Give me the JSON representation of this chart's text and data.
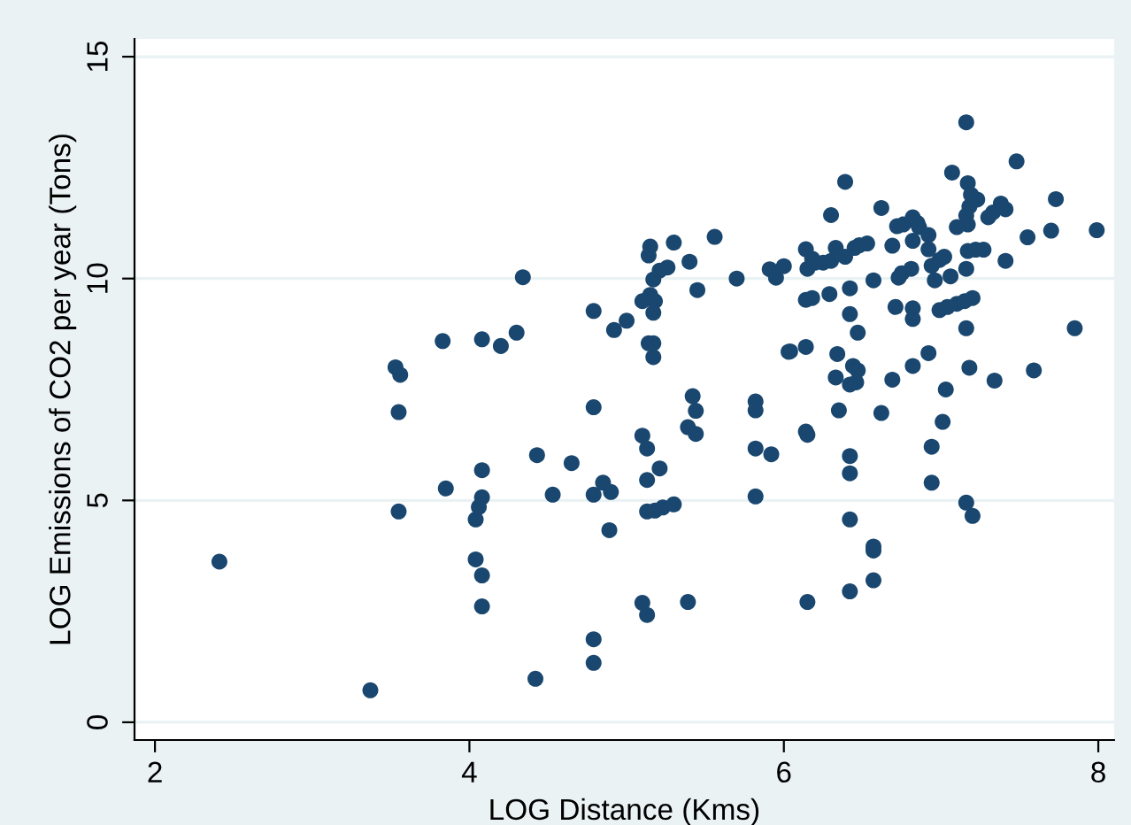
{
  "chart_data": {
    "type": "scatter",
    "xlabel": "LOG Distance (Kms)",
    "ylabel": "LOG Emissions of CO2 per year (Tons)",
    "xlim": [
      1.87,
      8.1
    ],
    "ylim": [
      -0.4,
      15.4
    ],
    "xticks": [
      2,
      4,
      6,
      8
    ],
    "yticks": [
      0,
      5,
      10,
      15
    ],
    "grid": "y",
    "marker": "circle",
    "series": [
      {
        "color": "#1a476f",
        "x": [
          3.83,
          4.08,
          3.53,
          3.56,
          3.55,
          4.08,
          3.85,
          4.08,
          3.55,
          4.04,
          4.06,
          4.04,
          4.08,
          4.08,
          2.41,
          3.37,
          4.34,
          4.2,
          4.3,
          4.79,
          4.92,
          5.0,
          5.15,
          5.14,
          5.3,
          5.56,
          5.17,
          5.21,
          5.26,
          5.4,
          5.45,
          5.7,
          5.91,
          5.95,
          6.0,
          5.1,
          5.15,
          5.18,
          5.17,
          5.14,
          5.17,
          5.17,
          6.03,
          4.79,
          5.42,
          5.44,
          5.82,
          5.82,
          5.39,
          5.44,
          5.1,
          5.13,
          5.82,
          5.92,
          4.43,
          4.65,
          5.21,
          5.13,
          4.85,
          4.9,
          4.79,
          4.53,
          5.82,
          5.13,
          5.18,
          5.23,
          5.3,
          4.89,
          5.1,
          5.13,
          5.39,
          4.79,
          4.79,
          4.42,
          7.16,
          7.48,
          7.07,
          6.39,
          7.17,
          7.73,
          6.62,
          6.3,
          7.19,
          7.23,
          7.18,
          7.16,
          7.17,
          7.1,
          7.38,
          7.41,
          7.33,
          7.3,
          7.7,
          7.55,
          7.99,
          6.72,
          6.76,
          6.82,
          6.85,
          6.86,
          6.82,
          6.92,
          6.92,
          6.69,
          6.48,
          6.53,
          6.45,
          6.39,
          6.33,
          6.3,
          6.25,
          6.2,
          6.14,
          6.15,
          6.18,
          6.57,
          6.75,
          6.81,
          6.73,
          6.94,
          6.99,
          7.02,
          6.96,
          7.06,
          7.17,
          7.22,
          7.27,
          7.16,
          7.41,
          6.14,
          6.18,
          6.29,
          6.42,
          6.42,
          6.47,
          6.71,
          6.82,
          6.82,
          6.99,
          7.04,
          7.1,
          7.15,
          7.2,
          7.16,
          7.85,
          6.04,
          6.14,
          6.34,
          6.44,
          6.47,
          6.33,
          6.42,
          6.46,
          6.82,
          6.92,
          6.69,
          7.18,
          7.03,
          7.34,
          7.59,
          6.35,
          6.62,
          7.01,
          6.14,
          6.15,
          6.42,
          6.42,
          6.94,
          6.94,
          7.16,
          7.2,
          6.42,
          6.57,
          6.57,
          6.57,
          6.42,
          6.15
        ],
        "values": [
          8.59,
          8.63,
          8.0,
          7.83,
          6.99,
          5.68,
          5.27,
          5.07,
          4.75,
          4.57,
          4.85,
          3.67,
          3.31,
          2.61,
          3.62,
          0.72,
          10.03,
          8.48,
          8.78,
          9.27,
          8.84,
          9.05,
          10.72,
          10.52,
          10.81,
          10.94,
          9.98,
          10.18,
          10.25,
          10.38,
          9.74,
          10.0,
          10.21,
          10.02,
          10.28,
          9.49,
          9.63,
          9.49,
          9.23,
          8.54,
          8.54,
          8.23,
          8.35,
          7.1,
          7.35,
          7.02,
          7.23,
          7.03,
          6.65,
          6.5,
          6.46,
          6.17,
          6.17,
          6.04,
          6.02,
          5.84,
          5.72,
          5.46,
          5.4,
          5.19,
          5.13,
          5.13,
          5.09,
          4.75,
          4.77,
          4.84,
          4.91,
          4.33,
          2.69,
          2.42,
          2.71,
          1.87,
          1.34,
          0.98,
          13.52,
          12.64,
          12.39,
          12.18,
          12.15,
          11.79,
          11.59,
          11.43,
          11.89,
          11.78,
          11.62,
          11.42,
          11.22,
          11.16,
          11.69,
          11.56,
          11.49,
          11.38,
          11.08,
          10.93,
          11.09,
          11.18,
          11.22,
          11.38,
          11.25,
          11.16,
          10.85,
          10.98,
          10.66,
          10.74,
          10.75,
          10.79,
          10.69,
          10.49,
          10.69,
          10.4,
          10.36,
          10.36,
          10.66,
          10.22,
          10.45,
          9.96,
          10.12,
          10.22,
          10.02,
          10.29,
          10.42,
          10.49,
          9.96,
          10.05,
          10.62,
          10.65,
          10.65,
          10.22,
          10.4,
          9.52,
          9.56,
          9.65,
          9.78,
          9.2,
          8.78,
          9.36,
          9.33,
          9.09,
          9.29,
          9.36,
          9.43,
          9.49,
          9.56,
          8.88,
          8.88,
          8.36,
          8.46,
          8.3,
          8.03,
          7.93,
          7.77,
          7.61,
          7.66,
          8.03,
          8.32,
          7.72,
          7.99,
          7.5,
          7.7,
          7.93,
          7.03,
          6.97,
          6.77,
          6.55,
          6.48,
          6.0,
          5.61,
          6.21,
          5.4,
          4.95,
          4.65,
          4.57,
          3.96,
          3.87,
          3.2,
          2.95,
          2.71
        ]
      }
    ]
  }
}
